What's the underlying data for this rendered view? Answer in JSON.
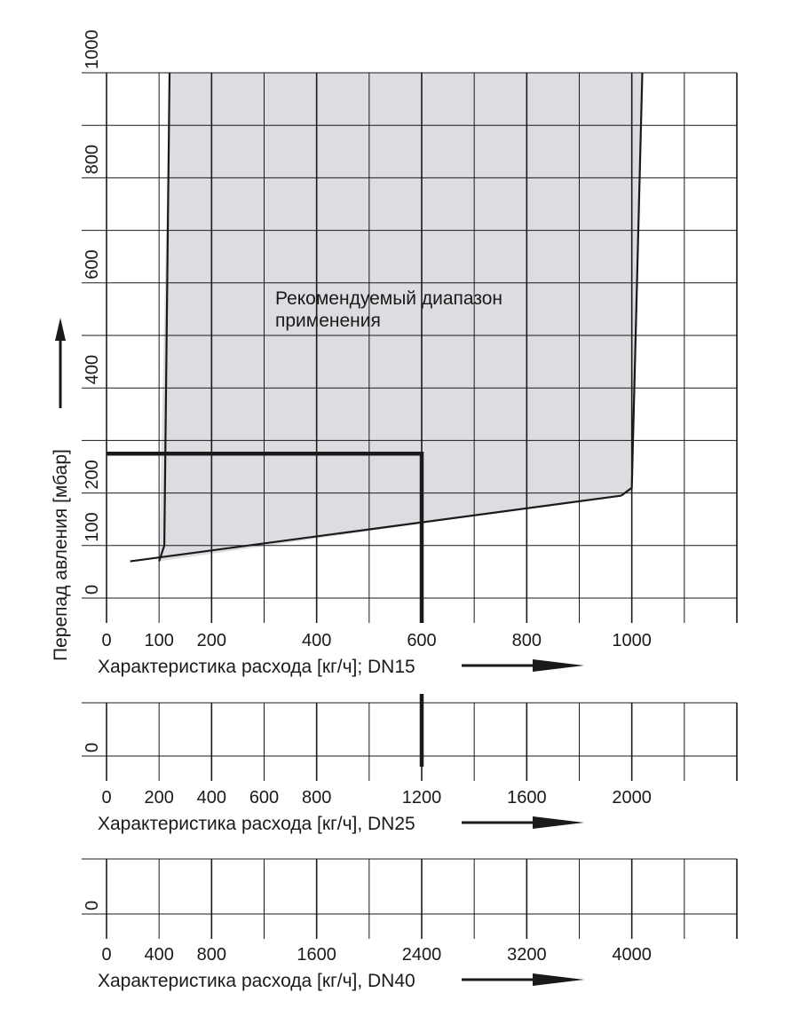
{
  "chart_data": {
    "type": "area",
    "annotation": {
      "line1": "Рекомендуемый диапазон",
      "line2": "применения"
    },
    "y_axis": {
      "label": "Перепад авления [мбар]",
      "tick_labels": [
        "0",
        "100",
        "200",
        "400",
        "600",
        "800",
        "1000"
      ],
      "ticks": [
        0,
        100,
        200,
        400,
        600,
        800,
        1000
      ],
      "range": [
        0,
        1000
      ],
      "grid_step": 100
    },
    "x_axes": [
      {
        "label": "Характеристика расхода [кг/ч]; DN15",
        "tick_labels": [
          "0",
          "100",
          "200",
          "400",
          "600",
          "800",
          "1000"
        ],
        "ticks": [
          0,
          100,
          200,
          400,
          600,
          800,
          1000
        ],
        "range": [
          0,
          1200
        ],
        "grid_step": 100,
        "major_every": 2
      },
      {
        "label": "Характеристика расхода [кг/ч], DN25",
        "tick_labels": [
          "0",
          "200",
          "400",
          "600",
          "800",
          "1200",
          "1600",
          "2000"
        ],
        "ticks": [
          0,
          200,
          400,
          600,
          800,
          1200,
          1600,
          2000
        ],
        "range": [
          0,
          2400
        ],
        "grid_step": 200,
        "major_every": 2
      },
      {
        "label": "Характеристика расхода [кг/ч], DN40",
        "tick_labels": [
          "0",
          "400",
          "800",
          "1600",
          "2400",
          "3200",
          "4000"
        ],
        "ticks": [
          0,
          400,
          800,
          1600,
          2400,
          3200,
          4000
        ],
        "range": [
          0,
          4800
        ],
        "grid_step": 400,
        "major_every": 2
      }
    ],
    "recommended_region": {
      "polygon": [
        [
          100,
          70
        ],
        [
          120,
          1000
        ],
        [
          1020,
          1000
        ],
        [
          1000,
          200
        ],
        [
          100,
          70
        ]
      ],
      "lower_boundary": [
        [
          45,
          70
        ],
        [
          980,
          195
        ]
      ],
      "left_boundary": [
        [
          100,
          70
        ],
        [
          110,
          100
        ],
        [
          120,
          1000
        ]
      ],
      "right_boundary": [
        [
          980,
          195
        ],
        [
          1000,
          210
        ],
        [
          1020,
          1000
        ]
      ],
      "fill_color": "#dcdde0"
    },
    "example_path": {
      "dp": 275,
      "flow_dn15": 600,
      "flow_dn25": 1200,
      "color": "#1a1a1a"
    },
    "grid": true
  }
}
